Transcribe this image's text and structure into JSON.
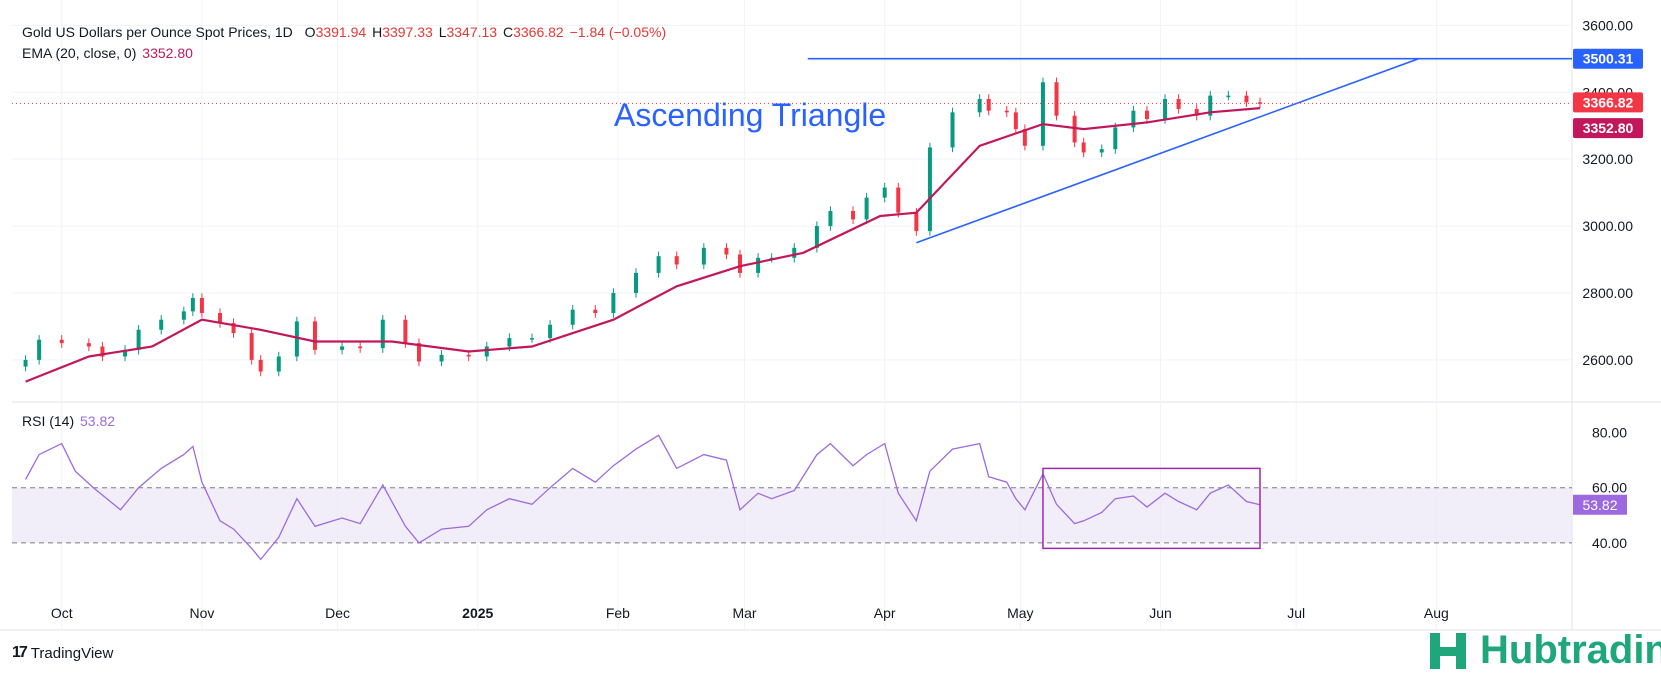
{
  "legend": {
    "title": "Gold US Dollars per Ounce Spot Prices, 1D",
    "open_label": "O",
    "open": "3391.94",
    "high_label": "H",
    "high": "3397.33",
    "low_label": "L",
    "low": "3347.13",
    "close_label": "C",
    "close": "3366.82",
    "change": "−1.84 (−0.05%)",
    "ema_label": "EMA (20, close, 0)",
    "ema_value": "3352.80",
    "rsi_label": "RSI (14)",
    "rsi_value": "53.82"
  },
  "branding": {
    "tradingview": "TradingView",
    "hub": "Hubtrading"
  },
  "colors": {
    "up": "#089981",
    "down": "#f23645",
    "ema": "#c2185b",
    "rsi": "#9c6ade",
    "pattern": "#2962ff",
    "box": "#9c27b0"
  },
  "chart_data": [
    {
      "type": "candlestick",
      "title": "",
      "ylim": [
        2480,
        3640
      ],
      "y_ticks": [
        2600,
        2800,
        3000,
        3200,
        3400,
        3600
      ],
      "x_ticks": [
        "Oct",
        "Nov",
        "Dec",
        "2025",
        "Feb",
        "Mar",
        "Apr",
        "May",
        "Jun",
        "Jul",
        "Aug"
      ],
      "annotation": "Ascending Triangle",
      "resistance_level": 3500.31,
      "resistance_label": "3500.31",
      "support_line": [
        {
          "date": "2025-04-08",
          "value": 2950
        },
        {
          "date": "2025-07-28",
          "value": 3500
        }
      ],
      "last_close": 3366.82,
      "last_close_label": "3366.82",
      "ema_last": 3352.8,
      "ema_last_label": "3352.80",
      "close_series": [
        [
          "2024-09-23",
          2600
        ],
        [
          "2024-09-26",
          2660
        ],
        [
          "2024-10-01",
          2650
        ],
        [
          "2024-10-07",
          2640
        ],
        [
          "2024-10-10",
          2610
        ],
        [
          "2024-10-15",
          2630
        ],
        [
          "2024-10-18",
          2690
        ],
        [
          "2024-10-23",
          2720
        ],
        [
          "2024-10-28",
          2745
        ],
        [
          "2024-10-30",
          2785
        ],
        [
          "2024-11-01",
          2740
        ],
        [
          "2024-11-05",
          2710
        ],
        [
          "2024-11-08",
          2680
        ],
        [
          "2024-11-12",
          2600
        ],
        [
          "2024-11-14",
          2565
        ],
        [
          "2024-11-18",
          2610
        ],
        [
          "2024-11-22",
          2715
        ],
        [
          "2024-11-26",
          2630
        ],
        [
          "2024-12-02",
          2640
        ],
        [
          "2024-12-06",
          2635
        ],
        [
          "2024-12-11",
          2720
        ],
        [
          "2024-12-16",
          2650
        ],
        [
          "2024-12-19",
          2595
        ],
        [
          "2024-12-24",
          2615
        ],
        [
          "2024-12-30",
          2610
        ],
        [
          "2025-01-03",
          2640
        ],
        [
          "2025-01-08",
          2665
        ],
        [
          "2025-01-13",
          2665
        ],
        [
          "2025-01-17",
          2705
        ],
        [
          "2025-01-22",
          2750
        ],
        [
          "2025-01-27",
          2740
        ],
        [
          "2025-01-31",
          2800
        ],
        [
          "2025-02-05",
          2860
        ],
        [
          "2025-02-10",
          2910
        ],
        [
          "2025-02-14",
          2885
        ],
        [
          "2025-02-20",
          2935
        ],
        [
          "2025-02-25",
          2915
        ],
        [
          "2025-02-28",
          2860
        ],
        [
          "2025-03-04",
          2905
        ],
        [
          "2025-03-07",
          2905
        ],
        [
          "2025-03-12",
          2935
        ],
        [
          "2025-03-17",
          3000
        ],
        [
          "2025-03-20",
          3045
        ],
        [
          "2025-03-25",
          3020
        ],
        [
          "2025-03-28",
          3085
        ],
        [
          "2025-04-01",
          3115
        ],
        [
          "2025-04-04",
          3040
        ],
        [
          "2025-04-08",
          2985
        ],
        [
          "2025-04-11",
          3235
        ],
        [
          "2025-04-16",
          3340
        ],
        [
          "2025-04-22",
          3380
        ],
        [
          "2025-04-24",
          3345
        ],
        [
          "2025-04-28",
          3340
        ],
        [
          "2025-04-30",
          3290
        ],
        [
          "2025-05-02",
          3240
        ],
        [
          "2025-05-06",
          3430
        ],
        [
          "2025-05-09",
          3330
        ],
        [
          "2025-05-13",
          3250
        ],
        [
          "2025-05-15",
          3220
        ],
        [
          "2025-05-19",
          3230
        ],
        [
          "2025-05-22",
          3295
        ],
        [
          "2025-05-26",
          3345
        ],
        [
          "2025-05-29",
          3320
        ],
        [
          "2025-06-02",
          3380
        ],
        [
          "2025-06-05",
          3350
        ],
        [
          "2025-06-09",
          3330
        ],
        [
          "2025-06-12",
          3390
        ],
        [
          "2025-06-16",
          3390
        ],
        [
          "2025-06-20",
          3370
        ],
        [
          "2025-06-23",
          3366.82
        ]
      ],
      "ema_series": [
        [
          "2024-09-23",
          2535
        ],
        [
          "2024-10-07",
          2610
        ],
        [
          "2024-10-21",
          2640
        ],
        [
          "2024-11-01",
          2720
        ],
        [
          "2024-11-14",
          2690
        ],
        [
          "2024-11-26",
          2655
        ],
        [
          "2024-12-13",
          2655
        ],
        [
          "2024-12-30",
          2625
        ],
        [
          "2025-01-13",
          2640
        ],
        [
          "2025-01-31",
          2720
        ],
        [
          "2025-02-14",
          2820
        ],
        [
          "2025-02-28",
          2880
        ],
        [
          "2025-03-14",
          2920
        ],
        [
          "2025-03-31",
          3030
        ],
        [
          "2025-04-08",
          3040
        ],
        [
          "2025-04-22",
          3240
        ],
        [
          "2025-05-06",
          3305
        ],
        [
          "2025-05-15",
          3290
        ],
        [
          "2025-05-29",
          3310
        ],
        [
          "2025-06-12",
          3340
        ],
        [
          "2025-06-23",
          3352.8
        ]
      ]
    },
    {
      "type": "line",
      "title": "",
      "ylim": [
        20,
        90
      ],
      "y_ticks": [
        40,
        60,
        80
      ],
      "band": [
        40,
        60
      ],
      "highlight_box": {
        "x": [
          "2025-05-06",
          "2025-06-23"
        ],
        "y": [
          38,
          67
        ]
      },
      "last_value": 53.82,
      "last_value_label": "53.82",
      "series": [
        [
          "2024-09-23",
          63
        ],
        [
          "2024-09-26",
          72
        ],
        [
          "2024-10-01",
          76
        ],
        [
          "2024-10-04",
          66
        ],
        [
          "2024-10-08",
          60
        ],
        [
          "2024-10-14",
          52
        ],
        [
          "2024-10-18",
          60
        ],
        [
          "2024-10-23",
          67
        ],
        [
          "2024-10-28",
          72
        ],
        [
          "2024-10-30",
          75
        ],
        [
          "2024-11-01",
          62
        ],
        [
          "2024-11-05",
          48
        ],
        [
          "2024-11-08",
          45
        ],
        [
          "2024-11-12",
          38
        ],
        [
          "2024-11-14",
          34
        ],
        [
          "2024-11-18",
          42
        ],
        [
          "2024-11-22",
          56
        ],
        [
          "2024-11-26",
          46
        ],
        [
          "2024-12-02",
          49
        ],
        [
          "2024-12-06",
          47
        ],
        [
          "2024-12-11",
          61
        ],
        [
          "2024-12-16",
          46
        ],
        [
          "2024-12-19",
          40
        ],
        [
          "2024-12-24",
          45
        ],
        [
          "2024-12-30",
          46
        ],
        [
          "2025-01-03",
          52
        ],
        [
          "2025-01-08",
          56
        ],
        [
          "2025-01-13",
          54
        ],
        [
          "2025-01-17",
          60
        ],
        [
          "2025-01-22",
          67
        ],
        [
          "2025-01-27",
          62
        ],
        [
          "2025-01-31",
          68
        ],
        [
          "2025-02-05",
          74
        ],
        [
          "2025-02-10",
          79
        ],
        [
          "2025-02-14",
          67
        ],
        [
          "2025-02-20",
          72
        ],
        [
          "2025-02-25",
          70
        ],
        [
          "2025-02-28",
          52
        ],
        [
          "2025-03-04",
          58
        ],
        [
          "2025-03-07",
          56
        ],
        [
          "2025-03-12",
          59
        ],
        [
          "2025-03-17",
          72
        ],
        [
          "2025-03-20",
          76
        ],
        [
          "2025-03-25",
          68
        ],
        [
          "2025-03-28",
          72
        ],
        [
          "2025-04-01",
          76
        ],
        [
          "2025-04-04",
          58
        ],
        [
          "2025-04-08",
          48
        ],
        [
          "2025-04-11",
          66
        ],
        [
          "2025-04-16",
          74
        ],
        [
          "2025-04-22",
          76
        ],
        [
          "2025-04-24",
          64
        ],
        [
          "2025-04-28",
          62
        ],
        [
          "2025-04-30",
          56
        ],
        [
          "2025-05-02",
          52
        ],
        [
          "2025-05-06",
          65
        ],
        [
          "2025-05-09",
          54
        ],
        [
          "2025-05-13",
          47
        ],
        [
          "2025-05-15",
          48
        ],
        [
          "2025-05-19",
          51
        ],
        [
          "2025-05-22",
          56
        ],
        [
          "2025-05-26",
          57
        ],
        [
          "2025-05-29",
          53
        ],
        [
          "2025-06-02",
          58
        ],
        [
          "2025-06-05",
          55
        ],
        [
          "2025-06-09",
          52
        ],
        [
          "2025-06-12",
          58
        ],
        [
          "2025-06-16",
          61
        ],
        [
          "2025-06-20",
          55
        ],
        [
          "2025-06-23",
          53.82
        ]
      ]
    }
  ]
}
